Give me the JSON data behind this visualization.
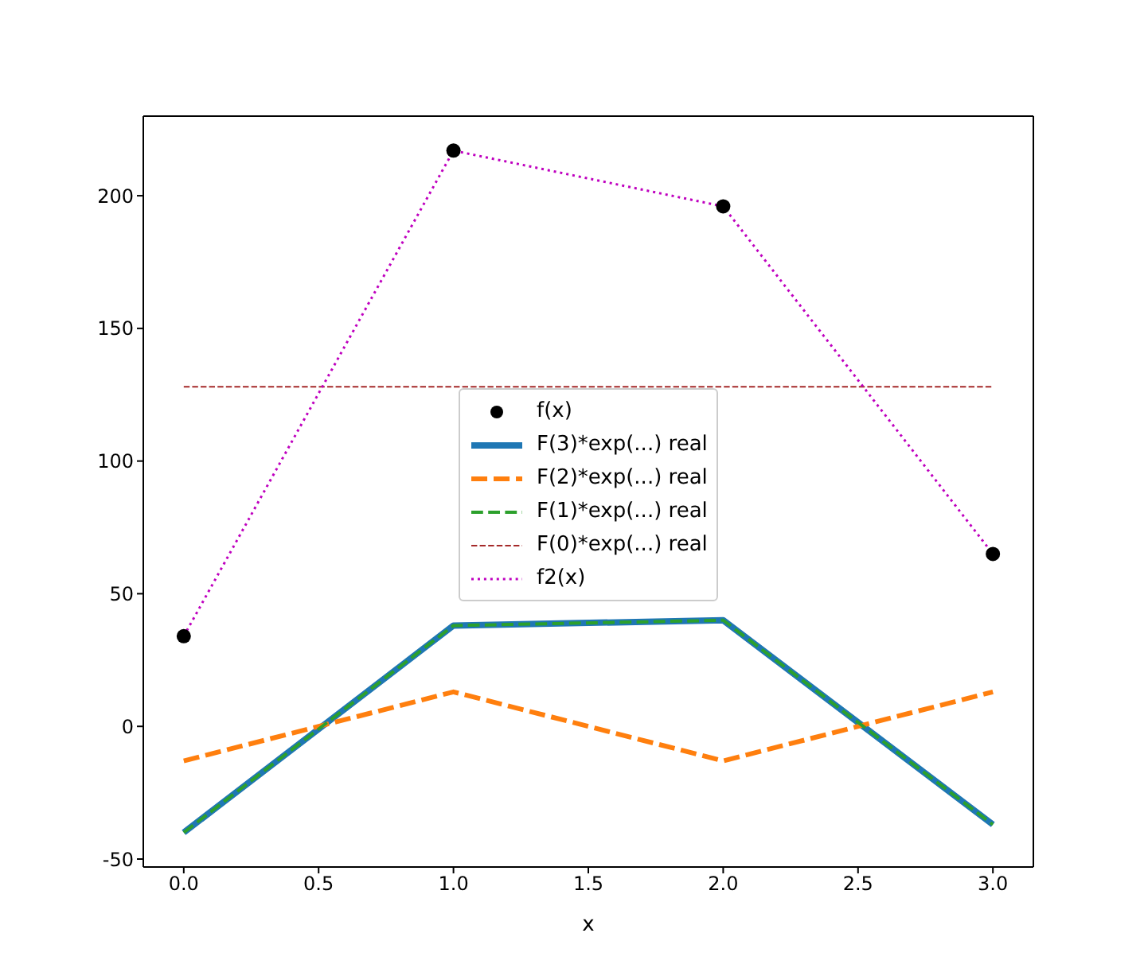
{
  "chart_data": {
    "type": "line",
    "xlabel": "x",
    "x": [
      0,
      1,
      2,
      3
    ],
    "xlim": [
      -0.15,
      3.15
    ],
    "xticks": [
      {
        "value": 0,
        "label": "0.0"
      },
      0.5,
      {
        "value": 1,
        "label": "1.0"
      },
      1.5,
      {
        "value": 2,
        "label": "2.0"
      },
      2.5,
      {
        "value": 3,
        "label": "3.0"
      }
    ],
    "ylim": [
      -53,
      230
    ],
    "yticks": [
      -50,
      0,
      50,
      100,
      150,
      200
    ],
    "grid": false,
    "legend": "center",
    "series": [
      {
        "name": "f(x)",
        "type": "scatter",
        "color": "#000000",
        "marker": "circle",
        "values": [
          34,
          217,
          196,
          65
        ]
      },
      {
        "name": "F(3)*exp(...) real",
        "color": "#1f77b4",
        "line_style": "solid",
        "values": [
          -40,
          38,
          40,
          -37
        ]
      },
      {
        "name": "F(2)*exp(...) real",
        "color": "#ff7f0e",
        "line_style": "dashed",
        "values": [
          -13,
          13,
          -13,
          13
        ]
      },
      {
        "name": "F(1)*exp(...) real",
        "color": "#2ca02c",
        "line_style": "dashed",
        "values": [
          -40,
          38,
          40,
          -37
        ]
      },
      {
        "name": "F(0)*exp(...) real",
        "color": "#a52a2a",
        "line_style": "dashed",
        "values": [
          128,
          128,
          128,
          128
        ]
      },
      {
        "name": "f2(x)",
        "color": "#bf00bf",
        "line_style": "dotted",
        "values": [
          34,
          217,
          196,
          65
        ]
      }
    ]
  }
}
